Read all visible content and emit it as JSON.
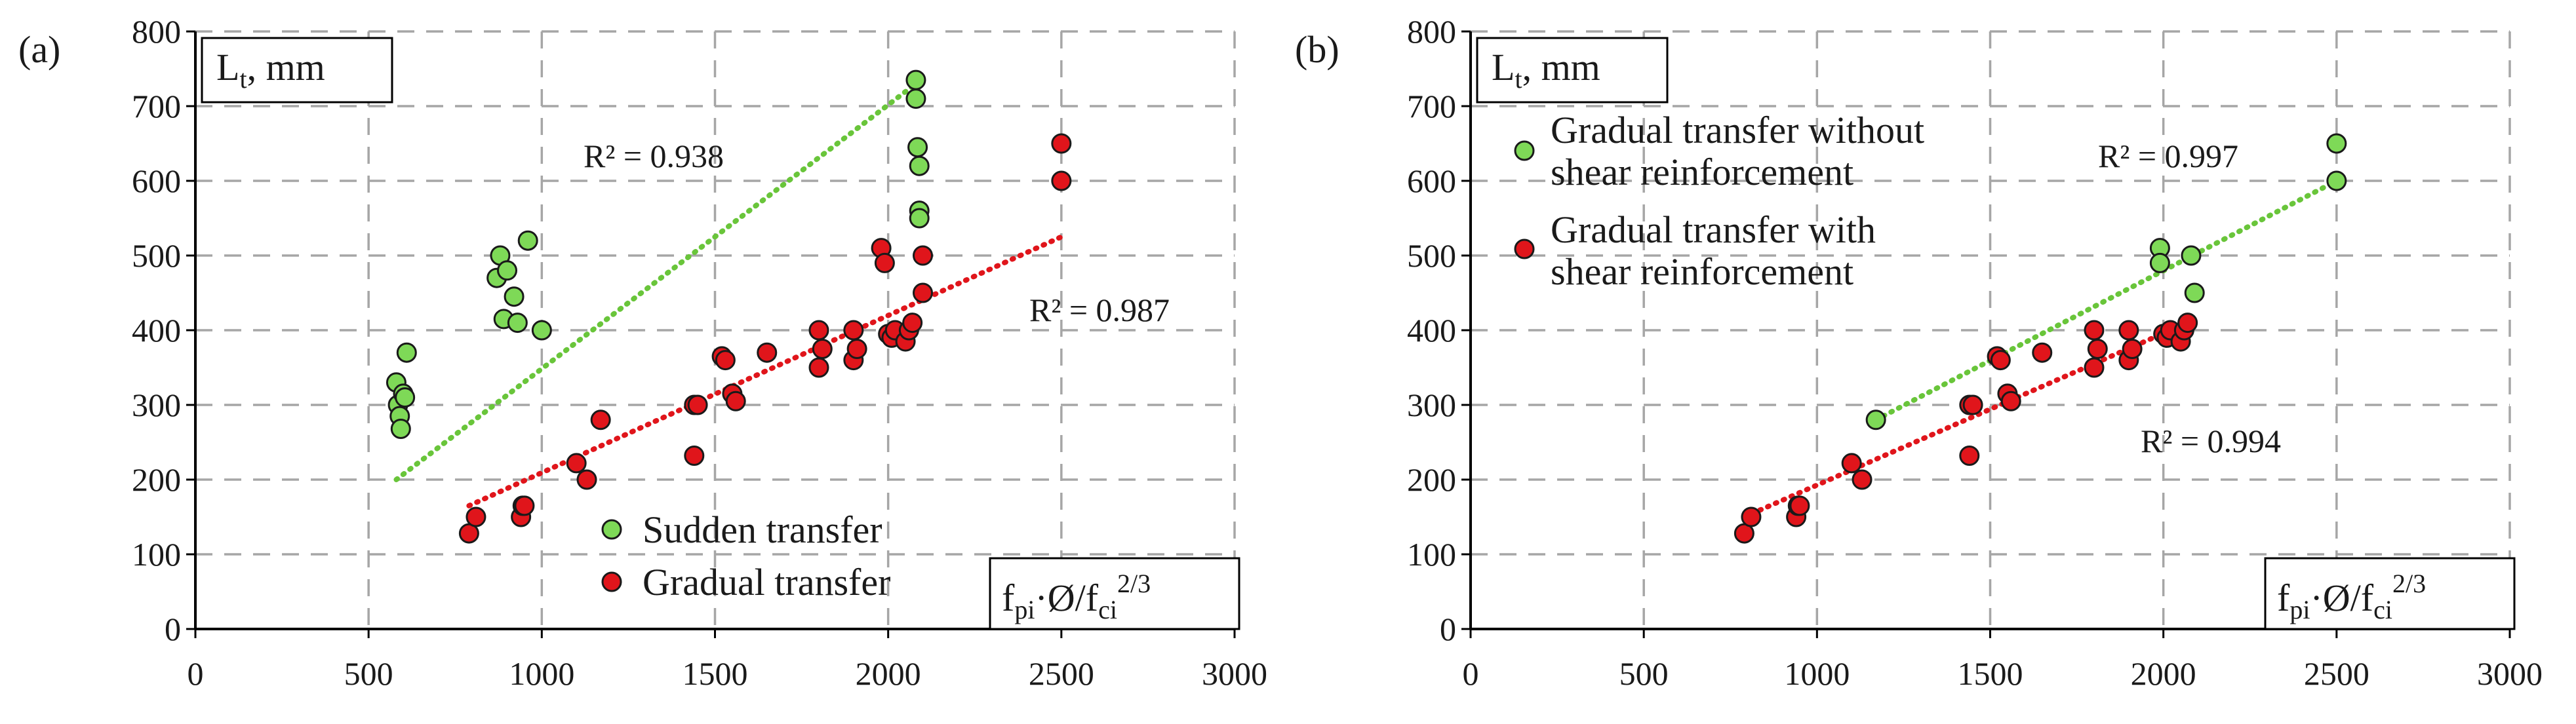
{
  "colors": {
    "green": "#7ed957",
    "red": "#e0151b",
    "green_trend": "#69c53a",
    "red_trend": "#e0151b",
    "grid": "#a6a6a6",
    "marker_stroke": "#1a1a1a",
    "axis": "#000000"
  },
  "chart_data": [
    {
      "type": "scatter",
      "panel_label": "(a)",
      "ylabel_main": "L",
      "ylabel_sub": "t",
      "ylabel_rest": ", mm",
      "xlabel_f": "f",
      "xlabel_pi": "pi",
      "xlabel_mid": "·Ø/f",
      "xlabel_ci": "ci",
      "xlabel_exp": "2/3",
      "xlim": [
        0,
        3000
      ],
      "ylim": [
        0,
        800
      ],
      "xticks": [
        "0",
        "500",
        "1000",
        "1500",
        "2000",
        "2500",
        "3000"
      ],
      "yticks": [
        "0",
        "100",
        "200",
        "300",
        "400",
        "500",
        "600",
        "700",
        "800"
      ],
      "grid": true,
      "legend_position": "bottom-center",
      "series": [
        {
          "name": "Sudden transfer",
          "color_key": "green",
          "points": [
            [
              580,
              330
            ],
            [
              585,
              300
            ],
            [
              590,
              285
            ],
            [
              593,
              268
            ],
            [
              600,
              315
            ],
            [
              605,
              310
            ],
            [
              610,
              370
            ],
            [
              870,
              470
            ],
            [
              880,
              500
            ],
            [
              890,
              415
            ],
            [
              900,
              480
            ],
            [
              920,
              445
            ],
            [
              930,
              410
            ],
            [
              960,
              520
            ],
            [
              1000,
              400
            ],
            [
              2080,
              735
            ],
            [
              2080,
              710
            ],
            [
              2085,
              645
            ],
            [
              2090,
              620
            ],
            [
              2090,
              560
            ],
            [
              2090,
              550
            ]
          ],
          "trendline": {
            "x": [
              580,
              2080
            ],
            "y": [
              200,
              730
            ],
            "r2_label": "R² = 0.938"
          }
        },
        {
          "name": "Gradual transfer",
          "color_key": "red",
          "points": [
            [
              790,
              128
            ],
            [
              810,
              150
            ],
            [
              940,
              150
            ],
            [
              945,
              165
            ],
            [
              950,
              165
            ],
            [
              1100,
              222
            ],
            [
              1130,
              200
            ],
            [
              1170,
              280
            ],
            [
              1440,
              232
            ],
            [
              1440,
              300
            ],
            [
              1450,
              300
            ],
            [
              1520,
              365
            ],
            [
              1530,
              360
            ],
            [
              1550,
              315
            ],
            [
              1560,
              305
            ],
            [
              1650,
              370
            ],
            [
              1800,
              350
            ],
            [
              1800,
              400
            ],
            [
              1810,
              375
            ],
            [
              1900,
              360
            ],
            [
              1900,
              400
            ],
            [
              1910,
              375
            ],
            [
              1980,
              510
            ],
            [
              1990,
              490
            ],
            [
              2000,
              395
            ],
            [
              2010,
              390
            ],
            [
              2020,
              400
            ],
            [
              2050,
              385
            ],
            [
              2060,
              400
            ],
            [
              2070,
              410
            ],
            [
              2100,
              500
            ],
            [
              2100,
              450
            ],
            [
              2500,
              650
            ],
            [
              2500,
              600
            ]
          ],
          "trendline": {
            "x": [
              790,
              2500
            ],
            "y": [
              165,
              525
            ],
            "r2_label": "R² = 0.987"
          }
        }
      ]
    },
    {
      "type": "scatter",
      "panel_label": "(b)",
      "ylabel_main": "L",
      "ylabel_sub": "t",
      "ylabel_rest": ", mm",
      "xlabel_f": "f",
      "xlabel_pi": "pi",
      "xlabel_mid": "·Ø/f",
      "xlabel_ci": "ci",
      "xlabel_exp": "2/3",
      "xlim": [
        0,
        3000
      ],
      "ylim": [
        0,
        800
      ],
      "xticks": [
        "0",
        "500",
        "1000",
        "1500",
        "2000",
        "2500",
        "3000"
      ],
      "yticks": [
        "0",
        "100",
        "200",
        "300",
        "400",
        "500",
        "600",
        "700",
        "800"
      ],
      "grid": true,
      "legend_position": "top-left",
      "series": [
        {
          "name_line1": "Gradual transfer without",
          "name_line2": "shear reinforcement",
          "color_key": "green",
          "points": [
            [
              1170,
              280
            ],
            [
              1990,
              510
            ],
            [
              1990,
              490
            ],
            [
              2080,
              500
            ],
            [
              2090,
              450
            ],
            [
              2500,
              650
            ],
            [
              2500,
              600
            ]
          ],
          "trendline": {
            "x": [
              1170,
              2500
            ],
            "y": [
              280,
              600
            ],
            "r2_label": "R² = 0.997"
          }
        },
        {
          "name_line1": "Gradual transfer with",
          "name_line2": "shear reinforcement",
          "color_key": "red",
          "points": [
            [
              790,
              128
            ],
            [
              810,
              150
            ],
            [
              940,
              150
            ],
            [
              945,
              165
            ],
            [
              950,
              165
            ],
            [
              1100,
              222
            ],
            [
              1130,
              200
            ],
            [
              1440,
              232
            ],
            [
              1440,
              300
            ],
            [
              1450,
              300
            ],
            [
              1520,
              365
            ],
            [
              1530,
              360
            ],
            [
              1550,
              315
            ],
            [
              1560,
              305
            ],
            [
              1650,
              370
            ],
            [
              1800,
              350
            ],
            [
              1800,
              400
            ],
            [
              1810,
              375
            ],
            [
              1900,
              360
            ],
            [
              1900,
              400
            ],
            [
              1910,
              375
            ],
            [
              2000,
              395
            ],
            [
              2010,
              390
            ],
            [
              2020,
              400
            ],
            [
              2050,
              385
            ],
            [
              2060,
              400
            ],
            [
              2070,
              410
            ]
          ],
          "trendline": {
            "x": [
              790,
              2070
            ],
            "y": [
              150,
              410
            ],
            "r2_label": "R² = 0.994"
          }
        }
      ]
    }
  ]
}
